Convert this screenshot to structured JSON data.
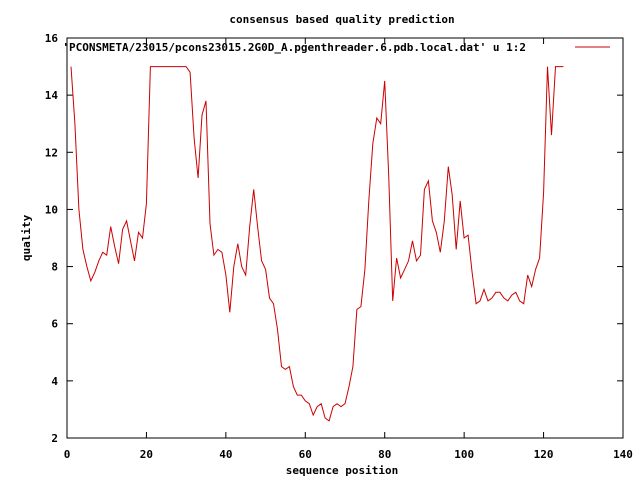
{
  "chart_data": {
    "type": "line",
    "title": "consensus based quality prediction",
    "xlabel": "sequence position",
    "ylabel": "quality",
    "xlim": [
      0,
      140
    ],
    "ylim": [
      2,
      16
    ],
    "xticks": [
      0,
      20,
      40,
      60,
      80,
      100,
      120,
      140
    ],
    "yticks": [
      2,
      4,
      6,
      8,
      10,
      12,
      14,
      16
    ],
    "grid": false,
    "legend_position": "top-right",
    "series": [
      {
        "name": "'PCONSMETA/23015/pcons23015.2G0D_A.pgenthreader.6.pdb.local.dat' u 1:2",
        "color": "#cc0000",
        "x": [
          1,
          2,
          3,
          4,
          5,
          6,
          7,
          8,
          9,
          10,
          11,
          12,
          13,
          14,
          15,
          16,
          17,
          18,
          19,
          20,
          21,
          22,
          23,
          24,
          25,
          26,
          27,
          28,
          29,
          30,
          31,
          32,
          33,
          34,
          35,
          36,
          37,
          38,
          39,
          40,
          41,
          42,
          43,
          44,
          45,
          46,
          47,
          48,
          49,
          50,
          51,
          52,
          53,
          54,
          55,
          56,
          57,
          58,
          59,
          60,
          61,
          62,
          63,
          64,
          65,
          66,
          67,
          68,
          69,
          70,
          71,
          72,
          73,
          74,
          75,
          76,
          77,
          78,
          79,
          80,
          81,
          82,
          83,
          84,
          85,
          86,
          87,
          88,
          89,
          90,
          91,
          92,
          93,
          94,
          95,
          96,
          97,
          98,
          99,
          100,
          101,
          102,
          103,
          104,
          105,
          106,
          107,
          108,
          109,
          110,
          111,
          112,
          113,
          114,
          115,
          116,
          117,
          118,
          119,
          120,
          121,
          122,
          123,
          124,
          125
        ],
        "y": [
          15.0,
          13.0,
          10.0,
          8.6,
          8.0,
          7.5,
          7.8,
          8.2,
          8.5,
          8.4,
          9.4,
          8.7,
          8.1,
          9.3,
          9.6,
          8.9,
          8.2,
          9.2,
          9.0,
          10.2,
          15.0,
          15.0,
          15.0,
          15.0,
          15.0,
          15.0,
          15.0,
          15.0,
          15.0,
          15.0,
          14.8,
          12.5,
          11.1,
          13.3,
          13.8,
          9.5,
          8.4,
          8.6,
          8.5,
          7.7,
          6.4,
          8.0,
          8.8,
          8.0,
          7.7,
          9.4,
          10.7,
          9.4,
          8.2,
          7.9,
          6.9,
          6.7,
          5.8,
          4.5,
          4.4,
          4.5,
          3.8,
          3.5,
          3.5,
          3.3,
          3.2,
          2.8,
          3.1,
          3.2,
          2.7,
          2.6,
          3.1,
          3.2,
          3.1,
          3.2,
          3.8,
          4.5,
          6.5,
          6.6,
          7.9,
          10.3,
          12.3,
          13.2,
          13.0,
          14.5,
          11.2,
          6.8,
          8.3,
          7.6,
          7.9,
          8.2,
          8.9,
          8.2,
          8.4,
          10.7,
          11.0,
          9.6,
          9.2,
          8.5,
          9.6,
          11.5,
          10.5,
          8.6,
          10.3,
          9.0,
          9.1,
          7.8,
          6.7,
          6.8,
          7.2,
          6.8,
          6.9,
          7.1,
          7.1,
          6.9,
          6.8,
          7.0,
          7.1,
          6.8,
          6.7,
          7.7,
          7.3,
          7.9,
          8.3,
          10.6,
          15.0,
          12.6,
          15.0,
          15.0,
          15.0
        ]
      }
    ]
  }
}
